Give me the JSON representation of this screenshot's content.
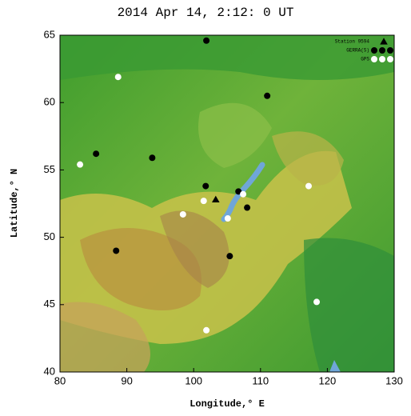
{
  "chart_data": {
    "type": "scatter",
    "title": "2014 Apr 14,  2:12: 0 UT",
    "x_label": "Longitude,° E",
    "y_label": "Latitude,° N",
    "xlim": [
      80,
      130
    ],
    "ylim": [
      40,
      65
    ],
    "xticks": [
      80,
      90,
      100,
      110,
      120,
      130
    ],
    "yticks": [
      40,
      45,
      50,
      55,
      60,
      65
    ],
    "legend": "upper right",
    "series": [
      {
        "name": "Station 9594",
        "color": "#000000",
        "marker": "triangle",
        "x": [
          103.3
        ],
        "y": [
          52.8
        ]
      },
      {
        "name": "GERRA(S)",
        "color": "#000000",
        "marker": "circle",
        "x": [
          101.9,
          111.0,
          85.4,
          93.8,
          101.8,
          106.7,
          108.0,
          88.4,
          105.4
        ],
        "y": [
          64.6,
          60.5,
          56.2,
          55.9,
          53.8,
          53.4,
          52.2,
          49.0,
          48.6
        ]
      },
      {
        "name": "GPS",
        "color": "#ffffff",
        "marker": "circle",
        "x": [
          88.7,
          83.0,
          107.4,
          101.5,
          117.2,
          98.4,
          105.1,
          118.4,
          101.9
        ],
        "y": [
          61.9,
          55.4,
          53.2,
          52.7,
          53.8,
          51.7,
          51.4,
          45.2,
          43.1
        ]
      }
    ]
  }
}
